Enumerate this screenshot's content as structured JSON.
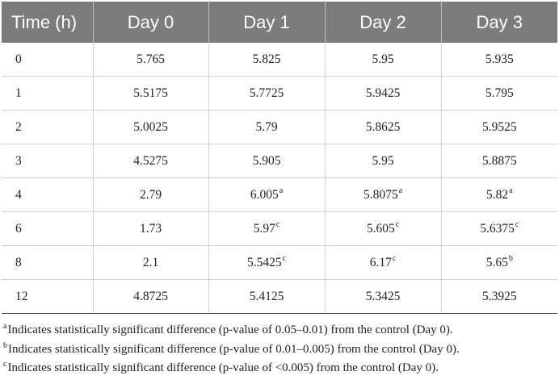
{
  "table": {
    "headers": [
      "Time (h)",
      "Day 0",
      "Day 1",
      "Day 2",
      "Day 3"
    ],
    "rows": [
      {
        "time": "0",
        "d0": "5.765",
        "d1": "5.825",
        "d1_sup": "",
        "d2": "5.95",
        "d2_sup": "",
        "d3": "5.935",
        "d3_sup": ""
      },
      {
        "time": "1",
        "d0": "5.5175",
        "d1": "5.7725",
        "d1_sup": "",
        "d2": "5.9425",
        "d2_sup": "",
        "d3": "5.795",
        "d3_sup": ""
      },
      {
        "time": "2",
        "d0": "5.0025",
        "d1": "5.79",
        "d1_sup": "",
        "d2": "5.8625",
        "d2_sup": "",
        "d3": "5.9525",
        "d3_sup": ""
      },
      {
        "time": "3",
        "d0": "4.5275",
        "d1": "5.905",
        "d1_sup": "",
        "d2": "5.95",
        "d2_sup": "",
        "d3": "5.8875",
        "d3_sup": ""
      },
      {
        "time": "4",
        "d0": "2.79",
        "d1": "6.005",
        "d1_sup": "a",
        "d2": "5.8075",
        "d2_sup": "a",
        "d3": "5.82",
        "d3_sup": "a"
      },
      {
        "time": "6",
        "d0": "1.73",
        "d1": "5.97",
        "d1_sup": "c",
        "d2": "5.605",
        "d2_sup": "c",
        "d3": "5.6375",
        "d3_sup": "c"
      },
      {
        "time": "8",
        "d0": "2.1",
        "d1": "5.5425",
        "d1_sup": "c",
        "d2": "6.17",
        "d2_sup": "c",
        "d3": "5.65",
        "d3_sup": "b"
      },
      {
        "time": "12",
        "d0": "4.8725",
        "d1": "5.4125",
        "d1_sup": "",
        "d2": "5.3425",
        "d2_sup": "",
        "d3": "5.3925",
        "d3_sup": ""
      }
    ]
  },
  "footnotes": [
    {
      "mark": "a",
      "text": "Indicates statistically significant difference (p-value of 0.05–0.01) from the control (Day 0)."
    },
    {
      "mark": "b",
      "text": "Indicates statistically significant difference (p-value of 0.01–0.005) from the control (Day 0)."
    },
    {
      "mark": "c",
      "text": "Indicates statistically significant difference (p-value of <0.005) from the control (Day 0)."
    }
  ],
  "colors": {
    "header_bg": "#7c7c7c",
    "header_text": "#ffffff",
    "grid": "#cfcfcf"
  }
}
